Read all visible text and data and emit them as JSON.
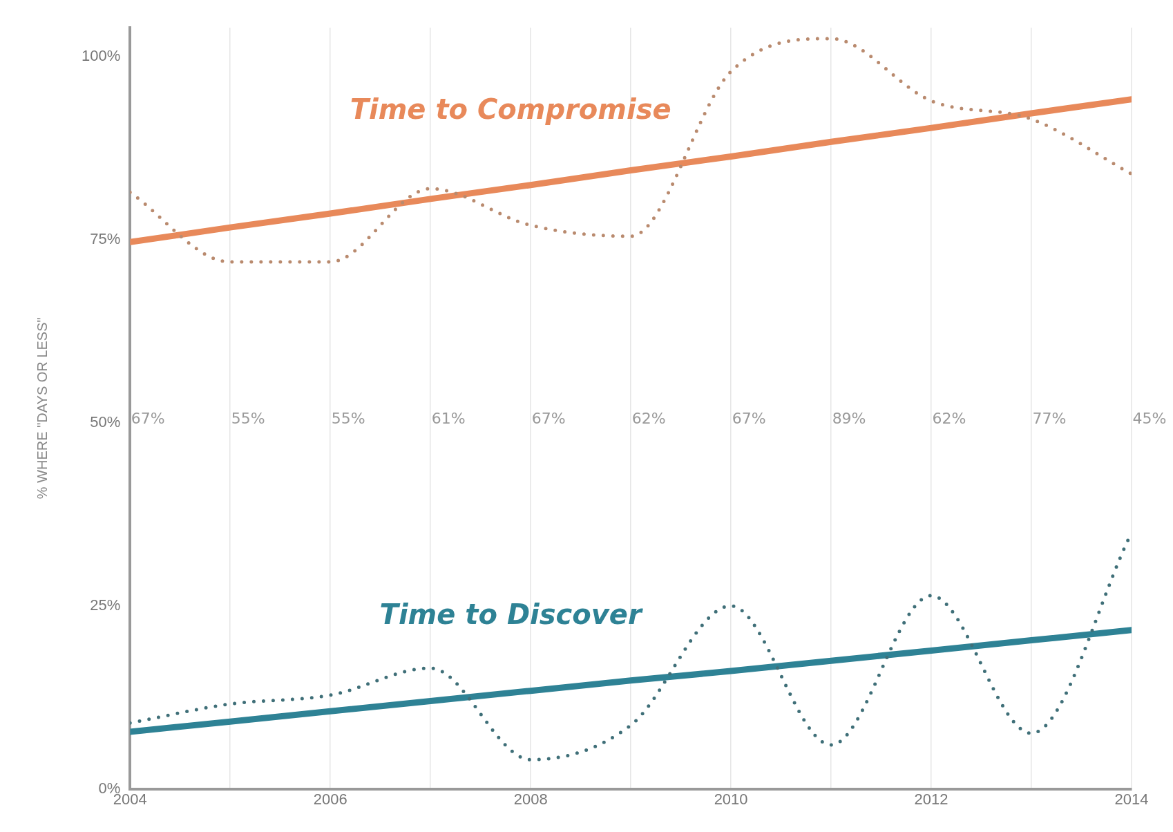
{
  "chart_data": {
    "type": "line",
    "ylabel": "% WHERE \"DAYS OR LESS\"",
    "x": [
      2004,
      2005,
      2006,
      2007,
      2008,
      2009,
      2010,
      2011,
      2012,
      2013,
      2014
    ],
    "xlim": [
      2004,
      2014
    ],
    "xticks": [
      2004,
      {
        "value": 2005,
        "label": null
      },
      2006,
      {
        "value": 2007,
        "label": null
      },
      2008,
      {
        "value": 2009,
        "label": null
      },
      2010,
      {
        "value": 2011,
        "label": null
      },
      2012,
      {
        "value": 2013,
        "label": null
      },
      2014
    ],
    "ylim": [
      0,
      104
    ],
    "yticks": [
      {
        "value": 0,
        "label": "0%"
      },
      {
        "value": 25,
        "label": "25%"
      },
      {
        "value": 50,
        "label": "50%"
      },
      {
        "value": 75,
        "label": "75%"
      },
      {
        "value": 100,
        "label": "100%"
      }
    ],
    "grid": "x",
    "marker": "none",
    "series": [
      {
        "color": "#b98a6e",
        "line_style": "dotted",
        "values": [
          81.5,
          72,
          72,
          82,
          77,
          75.5,
          98,
          102.5,
          94,
          91.5,
          84
        ]
      },
      {
        "color": "#3f6f78",
        "line_style": "dotted",
        "values": [
          9,
          11.6,
          12.8,
          16.5,
          4,
          8.7,
          25,
          6,
          26.4,
          7.6,
          35
        ]
      },
      {
        "name": "Time to Compromise",
        "color": "#e8895a",
        "line_style": "solid",
        "values": [
          74.7,
          76.7,
          78.6,
          80.6,
          82.5,
          84.5,
          86.4,
          88.4,
          90.3,
          92.3,
          94.2
        ]
      },
      {
        "name": "Time to Discover",
        "color": "#2e8295",
        "line_style": "solid",
        "values": [
          7.8,
          9.2,
          10.6,
          12.0,
          13.4,
          14.8,
          16.1,
          17.5,
          18.9,
          20.3,
          21.7
        ]
      }
    ],
    "annotations": [
      "67%",
      "55%",
      "55%",
      "61%",
      "67%",
      "62%",
      "67%",
      "89%",
      "62%",
      "77%",
      "45%"
    ]
  }
}
